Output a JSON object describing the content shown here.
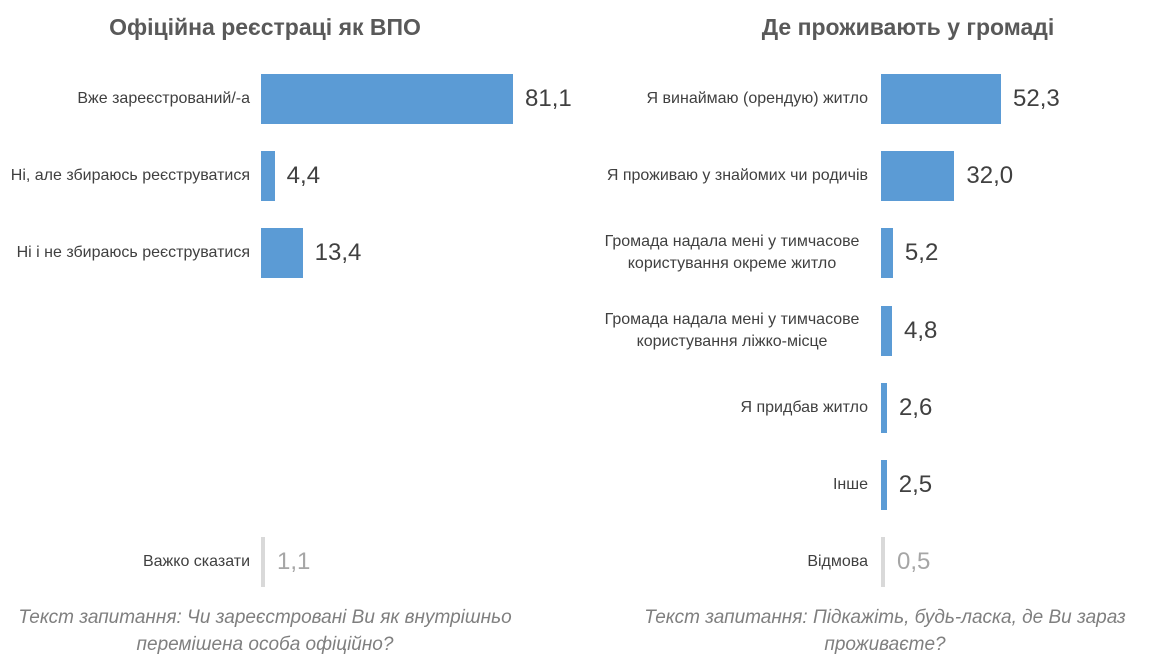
{
  "chart_data": [
    {
      "type": "bar",
      "title": "Офіційна реєстраці як ВПО",
      "categories": [
        "Вже зареєстрований/-а",
        "Ні, але збираюсь реєструватися",
        "Ні і не збираюсь реєструватися",
        "Важко сказати"
      ],
      "values": [
        81.1,
        4.4,
        13.4,
        1.1
      ],
      "value_labels": [
        "81,1",
        "4,4",
        "13,4",
        "1,1"
      ],
      "colors": [
        "#5b9bd5",
        "#5b9bd5",
        "#5b9bd5",
        "#d9d9d9"
      ],
      "note": "Текст запитання: Чи зареєстровані Ви як внутрішньо перемішена особа офіційно?"
    },
    {
      "type": "bar",
      "title": "Де проживають у громаді",
      "categories": [
        "Я винаймаю (орендую) житло",
        "Я проживаю у знайомих чи родичів",
        "Громада надала мені у тимчасове користування окреме житло",
        "Громада надала мені у тимчасове користування ліжко-місце",
        "Я придбав житло",
        "Інше",
        "Відмова"
      ],
      "values": [
        52.3,
        32.0,
        5.2,
        4.8,
        2.6,
        2.5,
        0.5
      ],
      "value_labels": [
        "52,3",
        "32,0",
        "5,2",
        "4,8",
        "2,6",
        "2,5",
        "0,5"
      ],
      "colors": [
        "#5b9bd5",
        "#5b9bd5",
        "#5b9bd5",
        "#5b9bd5",
        "#5b9bd5",
        "#5b9bd5",
        "#d9d9d9"
      ],
      "note": "Текст запитання: Підкажіть, будь-ласка, де Ви зараз проживаєте?"
    }
  ]
}
